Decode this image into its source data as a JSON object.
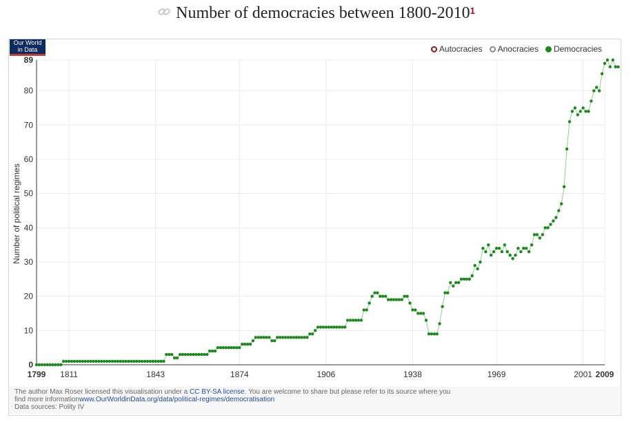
{
  "header": {
    "title": "Number of democracies between 1800-2010",
    "ref": "1",
    "link_icon": "link-icon"
  },
  "logo": {
    "line1": "Our World",
    "line2": "in Data"
  },
  "legend": {
    "items": [
      {
        "label": "Autocracies",
        "color": "#8b1a1a",
        "style": "hollow"
      },
      {
        "label": "Anocracies",
        "color": "#8a8a8a",
        "style": "hollow"
      },
      {
        "label": "Democracies",
        "color": "#1a8a1a",
        "style": "filled"
      }
    ]
  },
  "footer": {
    "license_prefix": "The author Max Roser licensed this visualisation under a ",
    "license_link": "CC BY-SA license",
    "license_suffix": ". You are welcome to share but please refer to its source where you",
    "info_prefix": "find more information",
    "info_link": "www.OurWorldinData.org/data/political-regimes/democratisation",
    "sources": "Data sources: Polity IV"
  },
  "colors": {
    "series": "#1a8a1a",
    "line": "#8fd08f",
    "grid": "#ececec"
  },
  "chart_data": {
    "type": "line",
    "title": "Number of democracies between 1800-2010",
    "ylabel": "Number of political regimes",
    "xlabel": "",
    "xlim": [
      1799,
      2009
    ],
    "ylim": [
      0,
      89
    ],
    "x_ticks": [
      1799,
      1811,
      1843,
      1874,
      1906,
      1938,
      1969,
      2001,
      2009
    ],
    "x_ticks_bold": [
      1799,
      2009
    ],
    "y_ticks": [
      0,
      10,
      20,
      30,
      40,
      50,
      60,
      70,
      80,
      89
    ],
    "y_ticks_bold": [
      0,
      89
    ],
    "grid": true,
    "legend_position": "top-right",
    "series": [
      {
        "name": "Democracies",
        "x_start": 1799,
        "values": [
          0,
          0,
          0,
          0,
          0,
          0,
          0,
          0,
          0,
          0,
          1,
          1,
          1,
          1,
          1,
          1,
          1,
          1,
          1,
          1,
          1,
          1,
          1,
          1,
          1,
          1,
          1,
          1,
          1,
          1,
          1,
          1,
          1,
          1,
          1,
          1,
          1,
          1,
          1,
          1,
          1,
          1,
          1,
          1,
          1,
          1,
          1,
          1,
          3,
          3,
          3,
          2,
          2,
          3,
          3,
          3,
          3,
          3,
          3,
          3,
          3,
          3,
          3,
          3,
          4,
          4,
          4,
          5,
          5,
          5,
          5,
          5,
          5,
          5,
          5,
          5,
          6,
          6,
          6,
          6,
          7,
          8,
          8,
          8,
          8,
          8,
          8,
          7,
          7,
          8,
          8,
          8,
          8,
          8,
          8,
          8,
          8,
          8,
          8,
          8,
          8,
          9,
          9,
          10,
          11,
          11,
          11,
          11,
          11,
          11,
          11,
          11,
          11,
          11,
          11,
          13,
          13,
          13,
          13,
          13,
          13,
          16,
          16,
          18,
          20,
          21,
          21,
          20,
          20,
          20,
          19,
          19,
          19,
          19,
          19,
          19,
          20,
          20,
          18,
          16,
          16,
          15,
          15,
          15,
          13,
          9,
          9,
          9,
          9,
          12,
          17,
          21,
          21,
          24,
          23,
          24,
          24,
          25,
          25,
          25,
          25,
          26,
          29,
          28,
          30,
          34,
          33,
          35,
          32,
          33,
          34,
          34,
          33,
          35,
          33,
          32,
          31,
          32,
          34,
          33,
          34,
          34,
          33,
          35,
          38,
          38,
          37,
          38,
          40,
          40,
          41,
          42,
          43,
          45,
          47,
          52,
          63,
          71,
          74,
          75,
          73,
          74,
          75,
          74,
          74,
          77,
          80,
          81,
          80,
          85,
          88,
          89,
          87,
          89,
          87,
          87
        ]
      }
    ]
  }
}
